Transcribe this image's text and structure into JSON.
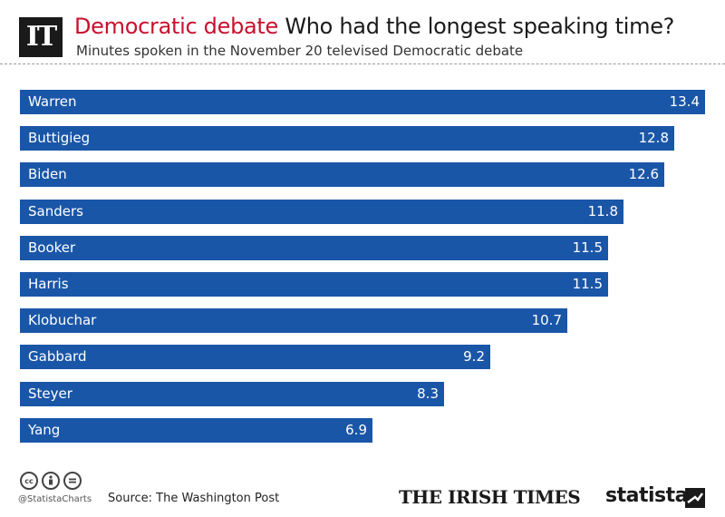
{
  "header": {
    "logo_text": "IT",
    "title_accent": "Democratic debate",
    "title_main": "Who had the longest speaking time?",
    "subtitle": "Minutes spoken in the November 20 televised Democratic debate"
  },
  "chart_data": {
    "type": "bar",
    "orientation": "horizontal",
    "categories": [
      "Warren",
      "Buttigieg",
      "Biden",
      "Sanders",
      "Booker",
      "Harris",
      "Klobuchar",
      "Gabbard",
      "Steyer",
      "Yang"
    ],
    "values": [
      13.4,
      12.8,
      12.6,
      11.8,
      11.5,
      11.5,
      10.7,
      9.2,
      8.3,
      6.9
    ],
    "title": "Who had the longest speaking time?",
    "xlabel": "",
    "ylabel": "",
    "xlim": [
      0,
      13.4
    ],
    "grid": false,
    "bar_color": "#1a56a8"
  },
  "footer": {
    "handle": "@StatistaCharts",
    "source": "Source: The Washington Post",
    "publisher": "THE IRISH TIMES",
    "brand": "statista",
    "cc_icons": [
      "cc-icon",
      "by-icon",
      "nd-icon"
    ]
  },
  "colors": {
    "accent": "#c8102e",
    "bar": "#1a56a8",
    "text": "#1a1a1a"
  }
}
